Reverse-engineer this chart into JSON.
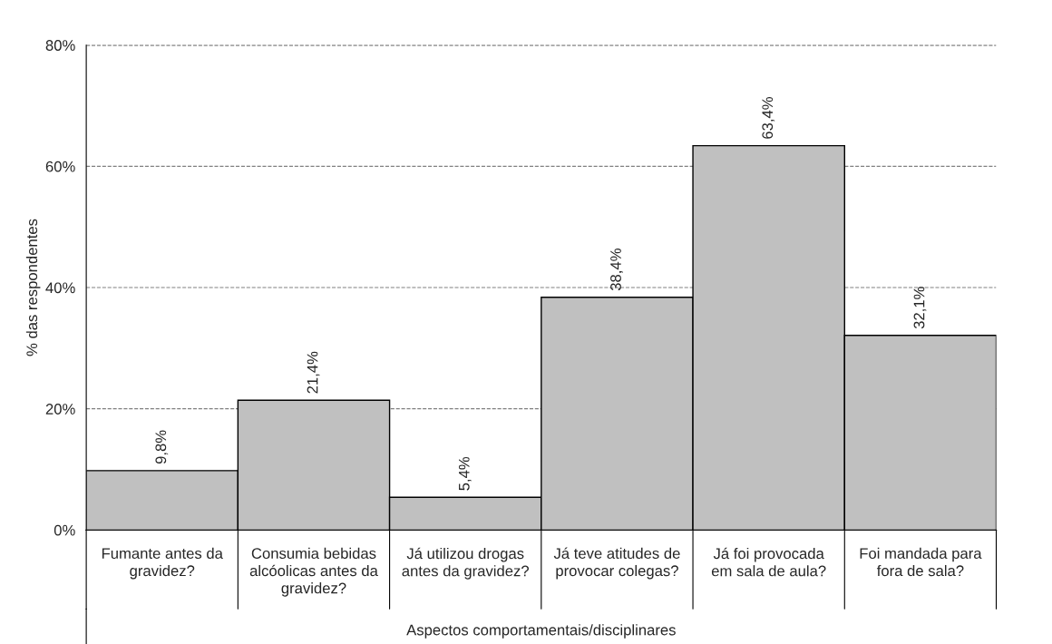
{
  "chart_data": {
    "type": "bar",
    "categories": [
      "Fumante antes da\ngravidez?",
      "Consumia bebidas\nalcóolicas antes da\ngravidez?",
      "Já utilizou drogas\nantes da gravidez?",
      "Já teve atitudes de\nprovocar colegas?",
      "Já foi provocada\nem sala de aula?",
      "Foi mandada para\nfora de sala?"
    ],
    "values": [
      9.8,
      21.4,
      5.4,
      38.4,
      63.4,
      32.1
    ],
    "value_labels": [
      "9,8%",
      "21,4%",
      "5,4%",
      "38,4%",
      "63,4%",
      "32,1%"
    ],
    "color": "#c0c0c0",
    "xlabel": "Aspectos comportamentais/disciplinares",
    "ylabel": "% das respondentes",
    "ylim": [
      0,
      80
    ],
    "yticks": [
      {
        "value": 0,
        "label": "0%"
      },
      {
        "value": 20,
        "label": "20%"
      },
      {
        "value": 40,
        "label": "40%"
      },
      {
        "value": 60,
        "label": "60%"
      },
      {
        "value": 80,
        "label": "80%"
      }
    ],
    "grid": "y",
    "line_style": "dashed",
    "legend": false
  }
}
